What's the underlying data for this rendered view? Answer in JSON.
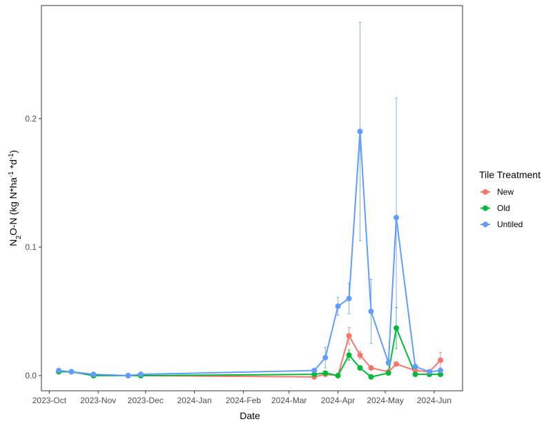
{
  "chart_data": {
    "type": "line",
    "x_label": "Date",
    "y_label": [
      "N",
      "2",
      "O-N (kg N*ha",
      "-1",
      " *d",
      "-1",
      ")"
    ],
    "legend_title": "Tile Treatment",
    "legend_position": "right",
    "x": [
      "2023-10-07",
      "2023-10-15",
      "2023-10-29",
      "2023-11-20",
      "2023-11-28",
      "2024-03-17",
      "2024-03-24",
      "2024-04-01",
      "2024-04-08",
      "2024-04-15",
      "2024-04-22",
      "2024-05-03",
      "2024-05-08",
      "2024-05-20",
      "2024-05-29",
      "2024-06-05"
    ],
    "xlim": [
      "2023-09-26",
      "2024-06-19"
    ],
    "xticks": [
      {
        "value": "2023-10-01",
        "label": "2023-Oct"
      },
      {
        "value": "2023-11-01",
        "label": "2023-Nov"
      },
      {
        "value": "2023-12-01",
        "label": "2023-Dec"
      },
      {
        "value": "2024-01-01",
        "label": "2024-Jan"
      },
      {
        "value": "2024-02-01",
        "label": "2024-Feb"
      },
      {
        "value": "2024-03-01",
        "label": "2024-Mar"
      },
      {
        "value": "2024-04-01",
        "label": "2024-Apr"
      },
      {
        "value": "2024-05-01",
        "label": "2024-May"
      },
      {
        "value": "2024-06-01",
        "label": "2024-Jun"
      }
    ],
    "ylim": [
      -0.0118,
      0.288
    ],
    "yticks": [
      {
        "value": 0,
        "label": "0.0"
      },
      0.1,
      0.2
    ],
    "grid": false,
    "series": [
      {
        "name": "New",
        "color": "#F8766D",
        "values": [
          0.003,
          0.003,
          0.0,
          0.0,
          0.0,
          -0.001,
          0.001,
          0.0,
          0.031,
          0.016,
          0.006,
          0.003,
          0.009,
          0.004,
          0.003,
          0.012
        ],
        "errors": [
          null,
          null,
          null,
          null,
          null,
          null,
          null,
          null,
          0.0065,
          0.003,
          null,
          null,
          null,
          null,
          null,
          0.006
        ]
      },
      {
        "name": "Old",
        "color": "#00BA38",
        "values": [
          0.003,
          0.003,
          0.0,
          0.0,
          0.0,
          0.001,
          0.002,
          0.0,
          0.016,
          0.006,
          -0.001,
          0.002,
          0.037,
          0.001,
          0.001,
          0.001
        ],
        "errors": [
          null,
          null,
          null,
          null,
          null,
          null,
          null,
          null,
          0.004,
          null,
          null,
          null,
          0.016,
          null,
          null,
          null
        ]
      },
      {
        "name": "Untiled",
        "color": "#619CFF",
        "values": [
          0.004,
          0.003,
          0.001,
          0.0,
          0.001,
          0.004,
          0.014,
          0.054,
          0.06,
          0.19,
          0.05,
          0.01,
          0.123,
          0.007,
          0.003,
          0.004
        ],
        "errors": [
          null,
          null,
          null,
          null,
          null,
          null,
          0.008,
          0.007,
          0.012,
          0.085,
          0.025,
          0.002,
          0.093,
          null,
          null,
          null
        ]
      }
    ]
  }
}
